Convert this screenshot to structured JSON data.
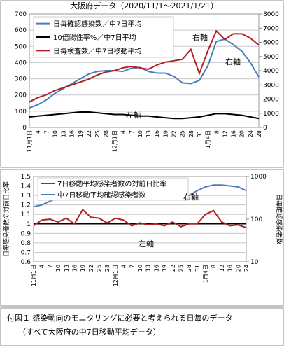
{
  "chart_data": [
    {
      "type": "line",
      "title": "大阪府データ（2020/11/1～2021/1/21）",
      "categories": [
        "11月1日",
        "4",
        "7",
        "10",
        "13",
        "16",
        "19",
        "22",
        "25",
        "28",
        "12月1日",
        "4",
        "7",
        "10",
        "13",
        "16",
        "19",
        "22",
        "25",
        "28",
        "31",
        "1月4日",
        "8",
        "12",
        "16",
        "20",
        "24",
        "28"
      ],
      "series": [
        {
          "name": "日毎確認感染数／中7日平均",
          "color": "#4a7ebb",
          "axis": "y",
          "values": [
            120,
            140,
            170,
            210,
            240,
            270,
            300,
            330,
            345,
            350,
            350,
            345,
            365,
            370,
            345,
            335,
            335,
            315,
            275,
            270,
            290,
            380,
            530,
            545,
            510,
            470,
            400,
            310
          ]
        },
        {
          "name": "10倍陽性率%／中7日平均",
          "color": "#000000",
          "axis": "y",
          "values": [
            65,
            70,
            75,
            80,
            85,
            90,
            95,
            95,
            90,
            85,
            80,
            80,
            75,
            70,
            70,
            65,
            60,
            55,
            55,
            60,
            65,
            75,
            85,
            85,
            80,
            75,
            65,
            55
          ]
        },
        {
          "name": "日毎検査数／中7日移動平均",
          "color": "#b22222",
          "axis": "y2",
          "values": [
            1800,
            2100,
            2300,
            2600,
            2800,
            3000,
            3200,
            3400,
            3700,
            3900,
            4000,
            4200,
            4300,
            4200,
            4100,
            4400,
            4600,
            4700,
            4800,
            5500,
            3800,
            5400,
            6800,
            6200,
            6600,
            6600,
            6300,
            5800
          ]
        }
      ],
      "ylim": [
        0,
        700
      ],
      "yticks": [
        0,
        100,
        200,
        300,
        400,
        500,
        600,
        700
      ],
      "y2lim": [
        0,
        8000
      ],
      "y2ticks": [
        0,
        1000,
        2000,
        3000,
        4000,
        5000,
        6000,
        7000,
        8000
      ],
      "grid": true,
      "legend": "upper left",
      "annotations": [
        {
          "text": "右軸"
        },
        {
          "text": "右軸"
        },
        {
          "text": "左軸"
        }
      ]
    },
    {
      "type": "line",
      "categories": [
        "11月1日",
        "4",
        "7",
        "10",
        "13",
        "16",
        "19",
        "22",
        "25",
        "28",
        "12月1日",
        "4",
        "7",
        "10",
        "13",
        "16",
        "19",
        "22",
        "25",
        "28",
        "31",
        "1月4日",
        "8",
        "12",
        "16",
        "20",
        "24"
      ],
      "series": [
        {
          "name": "7日移動平均感染者数の対前日比率",
          "color": "#b22222",
          "axis": "y",
          "values": [
            0.98,
            1.04,
            1.05,
            1.02,
            1.06,
            1.0,
            1.15,
            1.07,
            1.06,
            1.01,
            1.06,
            1.04,
            0.98,
            1.01,
            0.99,
            1.0,
            0.98,
            1.02,
            0.97,
            1.0,
            1.0,
            1.1,
            1.14,
            1.02,
            0.98,
            0.99,
            0.96
          ]
        },
        {
          "name": "中7日移動平均確認感染者数",
          "color": "#4a7ebb",
          "axis": "y2",
          "values": [
            194,
            215,
            264,
            308,
            324,
            378,
            419,
            441,
            441,
            464,
            441,
            441,
            419,
            398,
            378,
            359,
            359,
            378,
            359,
            359,
            464,
            570,
            631,
            631,
            600,
            570,
            464
          ]
        }
      ],
      "ylabel": "日毎感染者数の対前日比率",
      "y2label": "日毎確認感染者数",
      "ylim": [
        0.6,
        1.5
      ],
      "yticks": [
        0.6,
        0.7,
        0.8,
        0.9,
        1,
        1.1,
        1.2,
        1.3,
        1.4,
        1.5
      ],
      "y2lim": [
        10,
        1000
      ],
      "y2ticks": [
        10,
        100,
        1000
      ],
      "y2log": true,
      "reference_line": 1,
      "grid": true,
      "legend": "upper left",
      "annotations": [
        {
          "text": "右軸"
        },
        {
          "text": "左軸"
        }
      ]
    }
  ],
  "caption": [
    "付図１ 感染動向のモニタリングに必要と考えられる日毎のデータ",
    "（すべて大阪府の中7日移動平均データ）"
  ]
}
